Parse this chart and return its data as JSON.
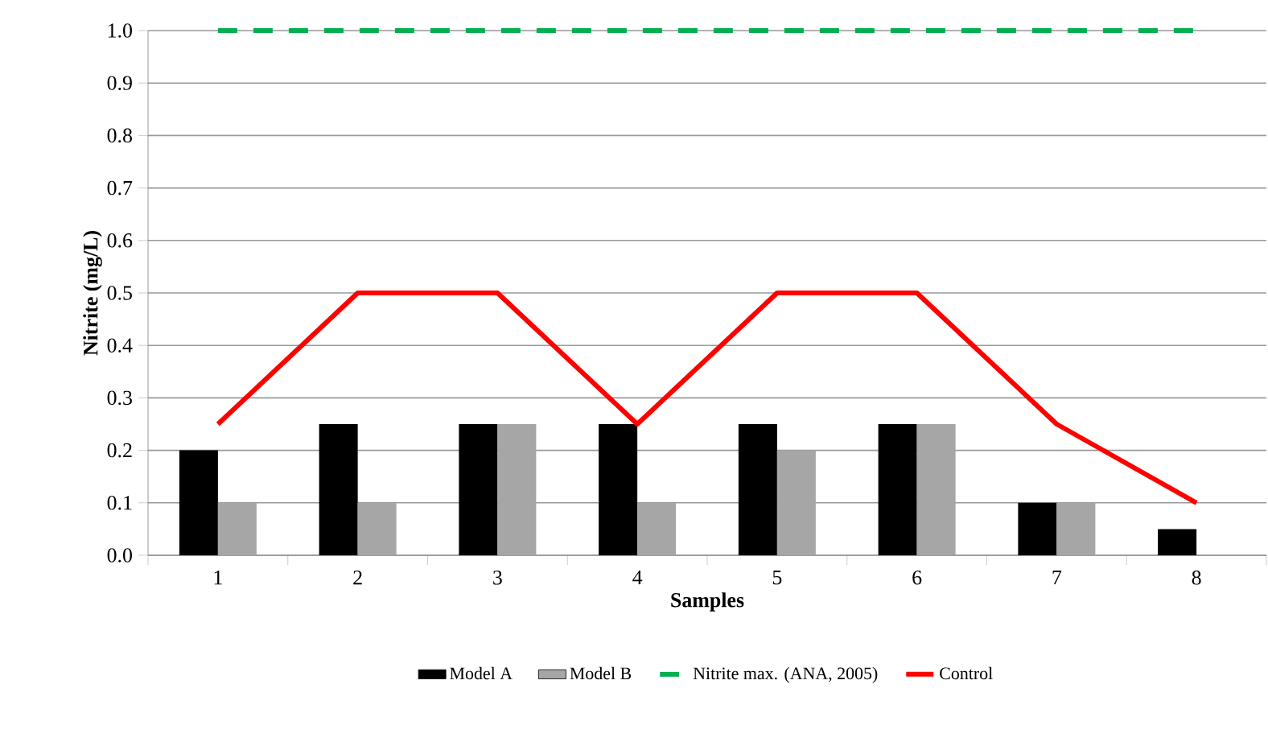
{
  "chart_data": {
    "type": "bar",
    "xlabel": "Samples",
    "ylabel": "Nitrite (mg/L)",
    "categories": [
      "1",
      "2",
      "3",
      "4",
      "5",
      "6",
      "7",
      "8"
    ],
    "series": [
      {
        "name": "Model A",
        "color": "#000000",
        "values": [
          0.2,
          0.25,
          0.25,
          0.25,
          0.25,
          0.25,
          0.1,
          0.05
        ]
      },
      {
        "name": "Model B",
        "color": "#a6a6a6",
        "values": [
          0.1,
          0.1,
          0.25,
          0.1,
          0.2,
          0.25,
          0.1,
          null
        ]
      },
      {
        "name": "Nitrite max. (ANA, 2005)",
        "type": "line",
        "line_style": "dashed",
        "color": "#00b050",
        "values": [
          1.0,
          1.0,
          1.0,
          1.0,
          1.0,
          1.0,
          1.0,
          1.0
        ]
      },
      {
        "name": "Control",
        "type": "line",
        "line_style": "solid",
        "color": "#ff0000",
        "values": [
          0.25,
          0.5,
          0.5,
          0.25,
          0.5,
          0.5,
          0.25,
          0.1
        ]
      }
    ],
    "ylim": [
      0,
      1.0
    ],
    "yticks": [
      {
        "value": 0,
        "label": "0.0"
      },
      {
        "value": 0.1,
        "label": "0.1"
      },
      {
        "value": 0.2,
        "label": "0.2"
      },
      {
        "value": 0.3,
        "label": "0.3"
      },
      {
        "value": 0.4,
        "label": "0.4"
      },
      {
        "value": 0.5,
        "label": "0.5"
      },
      {
        "value": 0.6,
        "label": "0.6"
      },
      {
        "value": 0.7,
        "label": "0.7"
      },
      {
        "value": 0.8,
        "label": "0.8"
      },
      {
        "value": 0.9,
        "label": "0.9"
      },
      {
        "value": 1.0,
        "label": "1.0"
      }
    ],
    "grid": "y",
    "legend": "bottom"
  }
}
